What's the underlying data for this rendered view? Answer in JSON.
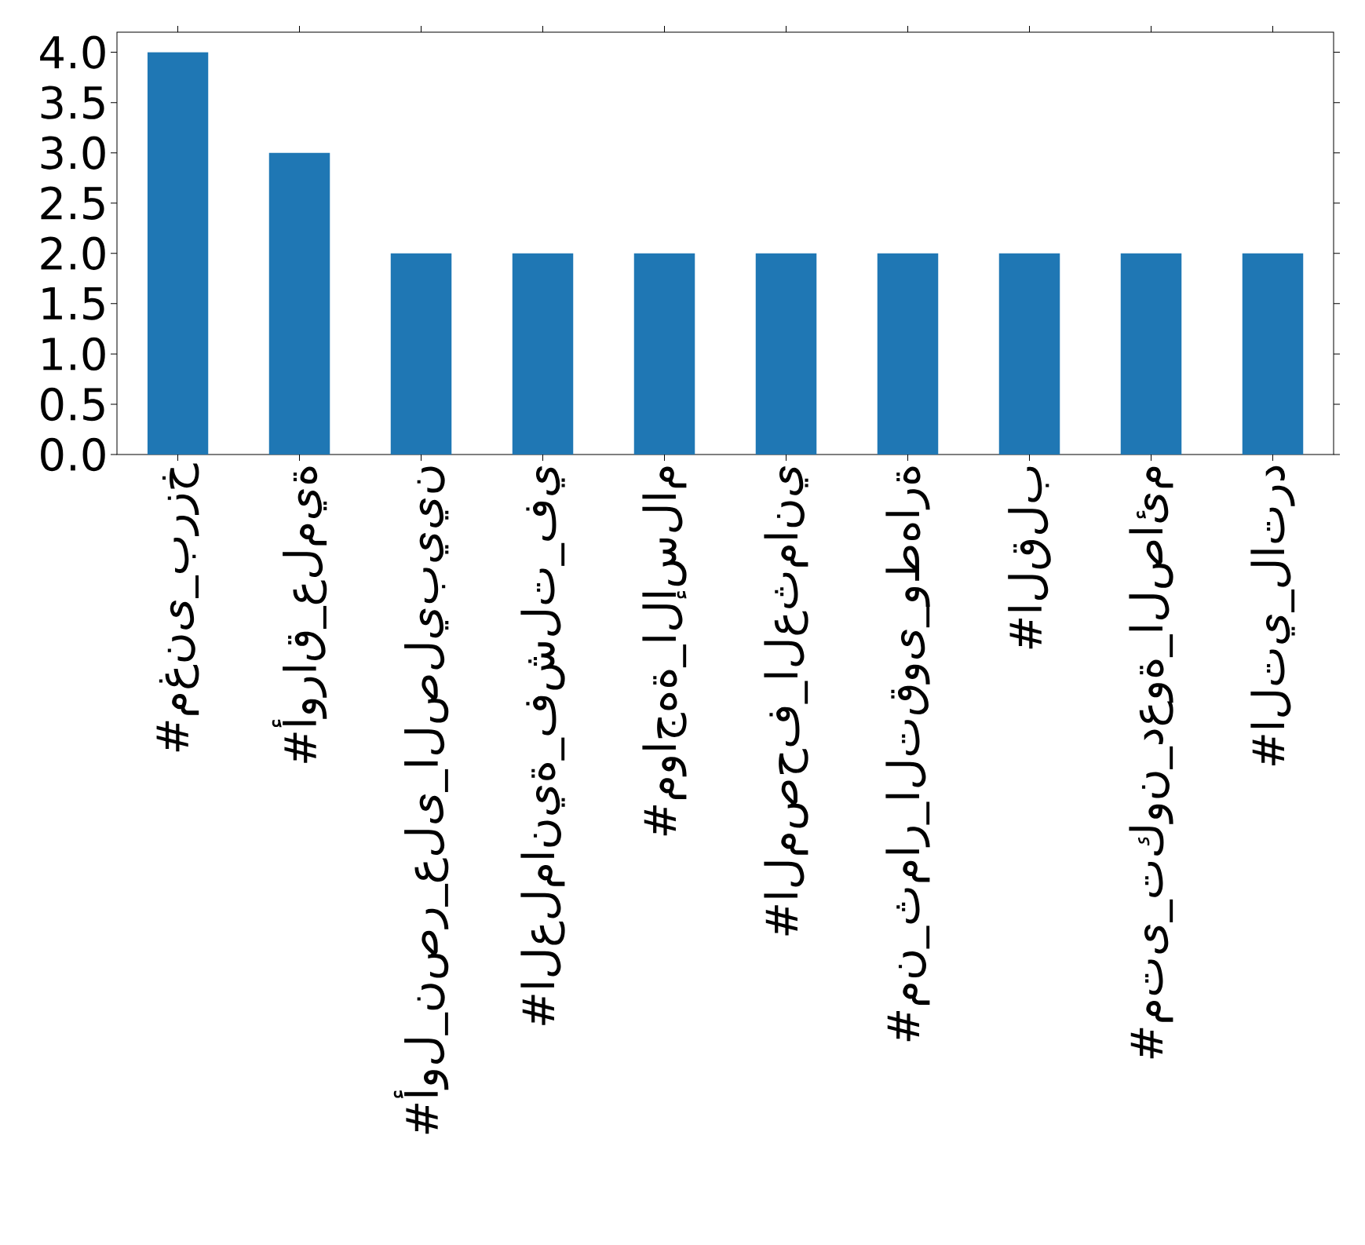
{
  "chart_data": {
    "type": "bar",
    "categories": [
      "#مغنى_برزخ",
      "#أوراق_علمية",
      "#أول_نصر_على_الصليبيين",
      "#العلمانية_فشلت_في",
      "#مواجهة_الإسلام",
      "#المصحف_العثماني",
      "#من_ثمار_التقوى_وطهارة",
      "#القلب",
      "#متى_تكون_دعوة_الصائم",
      "#التي_لاترد"
    ],
    "values": [
      4,
      3,
      2,
      2,
      2,
      2,
      2,
      2,
      2,
      2
    ],
    "color": "#1f77b4",
    "ylim": [
      0,
      4.2
    ],
    "yticks": [
      {
        "value": 0,
        "label": "0.0"
      },
      {
        "value": 0.5,
        "label": "0.5"
      },
      {
        "value": 1,
        "label": "1.0"
      },
      {
        "value": 1.5,
        "label": "1.5"
      },
      {
        "value": 2,
        "label": "2.0"
      },
      {
        "value": 2.5,
        "label": "2.5"
      },
      {
        "value": 3,
        "label": "3.0"
      },
      {
        "value": 3.5,
        "label": "3.5"
      },
      {
        "value": 4,
        "label": "4.0"
      }
    ]
  }
}
